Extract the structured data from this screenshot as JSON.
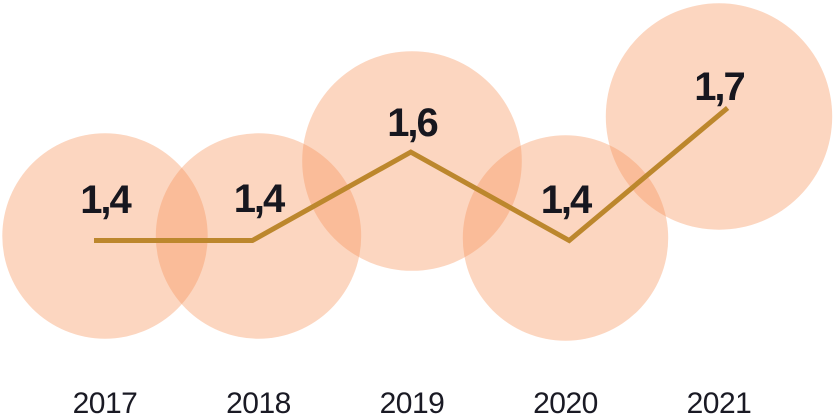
{
  "chart_data": {
    "type": "line",
    "variant": "line-with-proportional-bubbles",
    "title": "",
    "xlabel": "",
    "ylabel": "",
    "categories": [
      "2017",
      "2018",
      "2019",
      "2020",
      "2021"
    ],
    "values": [
      1.4,
      1.4,
      1.6,
      1.4,
      1.7
    ],
    "value_labels": [
      "1,4",
      "1,4",
      "1,6",
      "1,4",
      "1,7"
    ],
    "decimal_separator": ",",
    "grid": false,
    "legend": false,
    "axes_drawn": false,
    "bubble_area_proportional_to_value": true,
    "colors": {
      "background": "#FFFFFF",
      "bubble_fill": "rgba(247, 148, 89, 0.38)",
      "bubble_single_over_white": "#FCD6C0",
      "bubble_overlap_over_white": "#FABD99",
      "trend_line": "#BC872D",
      "value_label_text": "#17171F",
      "axis_label_text": "#1A1A24"
    }
  }
}
